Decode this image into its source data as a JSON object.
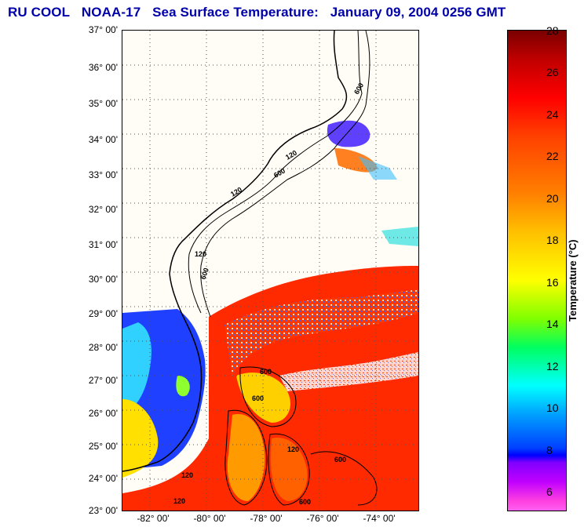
{
  "header": {
    "source": "RU COOL",
    "satellite": "NOAA-17",
    "product": "Sea Surface Temperature:",
    "datetime": "January 09, 2004 0256 GMT"
  },
  "map": {
    "lat_labels": [
      "37° 00'",
      "36° 00'",
      "35° 00'",
      "34° 00'",
      "33° 00'",
      "32° 00'",
      "31° 00'",
      "30° 00'",
      "29° 00'",
      "28° 00'",
      "27° 00'",
      "26° 00'",
      "25° 00'",
      "24° 00'",
      "23° 00'"
    ],
    "lon_labels": [
      "-82° 00'",
      "-80° 00'",
      "-78° 00'",
      "-76° 00'",
      "-74° 00'"
    ],
    "lat_range": [
      23,
      37
    ],
    "lon_range": [
      -83,
      -72.5
    ],
    "isobath_labels": [
      "600",
      "120",
      "600",
      "120",
      "120",
      "600",
      "600",
      "600",
      "120",
      "120",
      "600",
      "120",
      "600"
    ]
  },
  "colorbar": {
    "title": "Temperature (°C)",
    "ticks": [
      "28",
      "26",
      "24",
      "22",
      "20",
      "18",
      "16",
      "14",
      "12",
      "10",
      "8",
      "6"
    ],
    "min": 5,
    "max": 28
  }
}
